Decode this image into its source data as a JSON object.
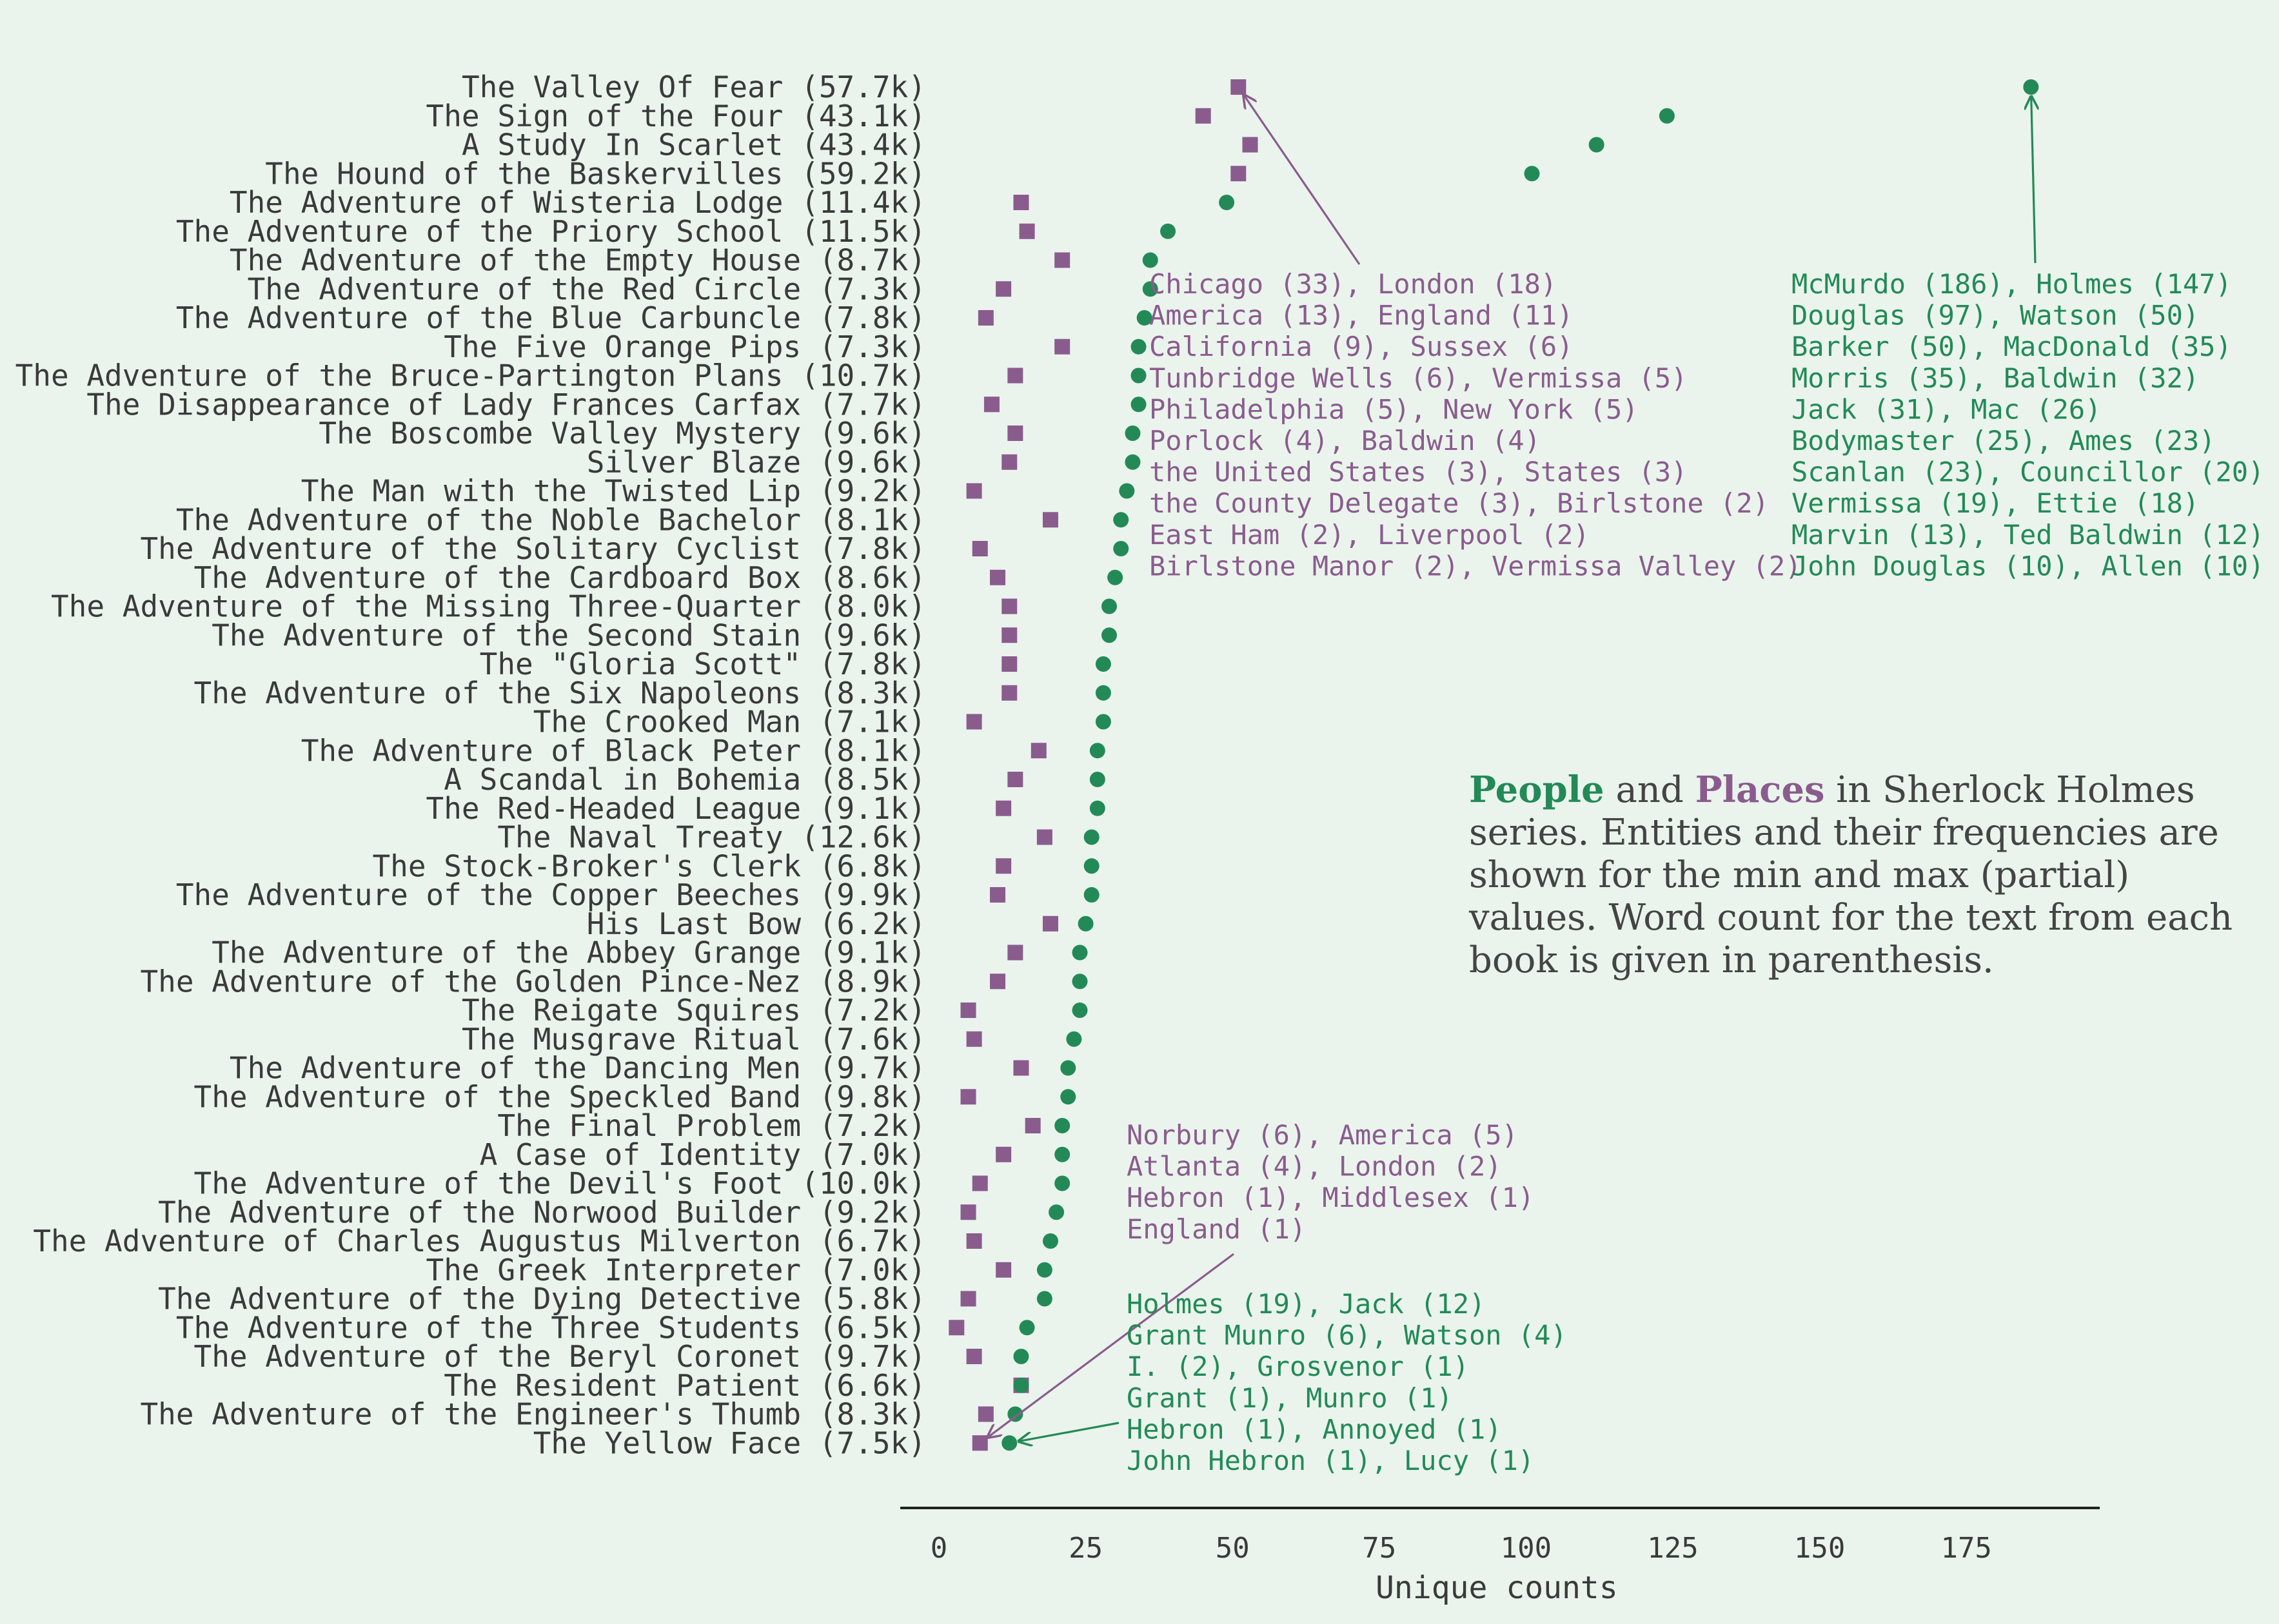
{
  "colors": {
    "background": "#eaf4ec",
    "people": "#238a57",
    "places": "#8a5c8e",
    "text": "#3a3a3a",
    "axis": "#222222"
  },
  "title": {
    "people_word": "People",
    "and_word": " and ",
    "places_word": "Places",
    "rest": " in Sherlock Holmes series. Entities and their frequencies are shown for the min and max (partial) values. Word count for the text from each book is given in parenthesis."
  },
  "chart_data": {
    "type": "scatter",
    "xlabel": "Unique counts",
    "xlim": [
      -6,
      198
    ],
    "x_ticks": [
      0,
      25,
      50,
      75,
      100,
      125,
      150,
      175
    ],
    "x_tick_labels": [
      "0",
      "25",
      "50",
      "75",
      "100",
      "125",
      "150",
      "175"
    ],
    "categories": [
      "The Valley Of Fear (57.7k)",
      "The Sign of the Four (43.1k)",
      "A Study In Scarlet (43.4k)",
      "The Hound of the Baskervilles (59.2k)",
      "The Adventure of Wisteria Lodge (11.4k)",
      "The Adventure of the Priory School (11.5k)",
      "The Adventure of the Empty House (8.7k)",
      "The Adventure of the Red Circle (7.3k)",
      "The Adventure of the Blue Carbuncle (7.8k)",
      "The Five Orange Pips (7.3k)",
      "The Adventure of the Bruce-Partington Plans (10.7k)",
      "The Disappearance of Lady Frances Carfax (7.7k)",
      "The Boscombe Valley Mystery (9.6k)",
      "Silver Blaze (9.6k)",
      "The Man with the Twisted Lip (9.2k)",
      "The Adventure of the Noble Bachelor (8.1k)",
      "The Adventure of the Solitary Cyclist (7.8k)",
      "The Adventure of the Cardboard Box (8.6k)",
      "The Adventure of the Missing Three-Quarter (8.0k)",
      "The Adventure of the Second Stain (9.6k)",
      "The \"Gloria Scott\" (7.8k)",
      "The Adventure of the Six Napoleons (8.3k)",
      "The Crooked Man (7.1k)",
      "The Adventure of Black Peter (8.1k)",
      "A Scandal in Bohemia (8.5k)",
      "The Red-Headed League (9.1k)",
      "The Naval Treaty (12.6k)",
      "The Stock-Broker's Clerk (6.8k)",
      "The Adventure of the Copper Beeches (9.9k)",
      "His Last Bow (6.2k)",
      "The Adventure of the Abbey Grange (9.1k)",
      "The Adventure of the Golden Pince-Nez (8.9k)",
      "The Reigate Squires (7.2k)",
      "The Musgrave Ritual (7.6k)",
      "The Adventure of the Dancing Men (9.7k)",
      "The Adventure of the Speckled Band (9.8k)",
      "The Final Problem (7.2k)",
      "A Case of Identity (7.0k)",
      "The Adventure of the Devil's Foot (10.0k)",
      "The Adventure of the Norwood Builder (9.2k)",
      "The Adventure of Charles Augustus Milverton (6.7k)",
      "The Greek Interpreter (7.0k)",
      "The Adventure of the Dying Detective (5.8k)",
      "The Adventure of the Three Students (6.5k)",
      "The Adventure of the Beryl Coronet (9.7k)",
      "The Resident Patient (6.6k)",
      "The Adventure of the Engineer's Thumb (8.3k)",
      "The Yellow Face (7.5k)"
    ],
    "series": [
      {
        "name": "People",
        "marker": "circle",
        "values": [
          186,
          124,
          112,
          101,
          49,
          39,
          36,
          36,
          35,
          34,
          34,
          34,
          33,
          33,
          32,
          31,
          31,
          30,
          29,
          29,
          28,
          28,
          28,
          27,
          27,
          27,
          26,
          26,
          26,
          25,
          24,
          24,
          24,
          23,
          22,
          22,
          21,
          21,
          21,
          20,
          19,
          18,
          18,
          15,
          14,
          14,
          13,
          12
        ]
      },
      {
        "name": "Places",
        "marker": "square",
        "values": [
          51,
          45,
          53,
          51,
          14,
          15,
          21,
          11,
          8,
          21,
          13,
          9,
          13,
          12,
          6,
          19,
          7,
          10,
          12,
          12,
          12,
          12,
          6,
          17,
          13,
          11,
          18,
          11,
          10,
          19,
          13,
          10,
          5,
          6,
          14,
          5,
          16,
          11,
          7,
          5,
          6,
          11,
          5,
          3,
          6,
          14,
          8,
          7
        ]
      }
    ],
    "annotations": [
      {
        "type": "places",
        "target_book": 0,
        "target_series": "Places",
        "lines": [
          "Chicago (33), London (18)",
          "America (13), England (11)",
          "California (9), Sussex (6)",
          "Tunbridge Wells (6), Vermissa (5)",
          "Philadelphia (5), New York (5)",
          "Porlock (4), Baldwin (4)",
          "the United States (3), States (3)",
          "the County Delegate (3), Birlstone (2)",
          "East Ham (2), Liverpool (2)",
          "Birlstone Manor (2), Vermissa Valley (2)"
        ]
      },
      {
        "type": "people",
        "target_book": 0,
        "target_series": "People",
        "lines": [
          "McMurdo (186), Holmes (147)",
          "Douglas (97), Watson (50)",
          "Barker (50), MacDonald (35)",
          "Morris (35), Baldwin (32)",
          "Jack (31), Mac (26)",
          "Bodymaster (25), Ames (23)",
          "Scanlan (23), Councillor (20)",
          "Vermissa (19), Ettie (18)",
          "Marvin (13), Ted Baldwin (12)",
          "John Douglas (10), Allen (10)"
        ]
      },
      {
        "type": "places",
        "target_book": 47,
        "target_series": "Places",
        "lines": [
          "Norbury (6), America (5)",
          "Atlanta (4), London (2)",
          "Hebron (1), Middlesex (1)",
          "England (1)"
        ]
      },
      {
        "type": "people",
        "target_book": 47,
        "target_series": "People",
        "lines": [
          "Holmes (19), Jack (12)",
          "Grant Munro (6), Watson (4)",
          "I. (2), Grosvenor (1)",
          "Grant (1), Munro (1)",
          "Hebron (1), Annoyed (1)",
          "John Hebron (1), Lucy (1)"
        ]
      }
    ]
  }
}
